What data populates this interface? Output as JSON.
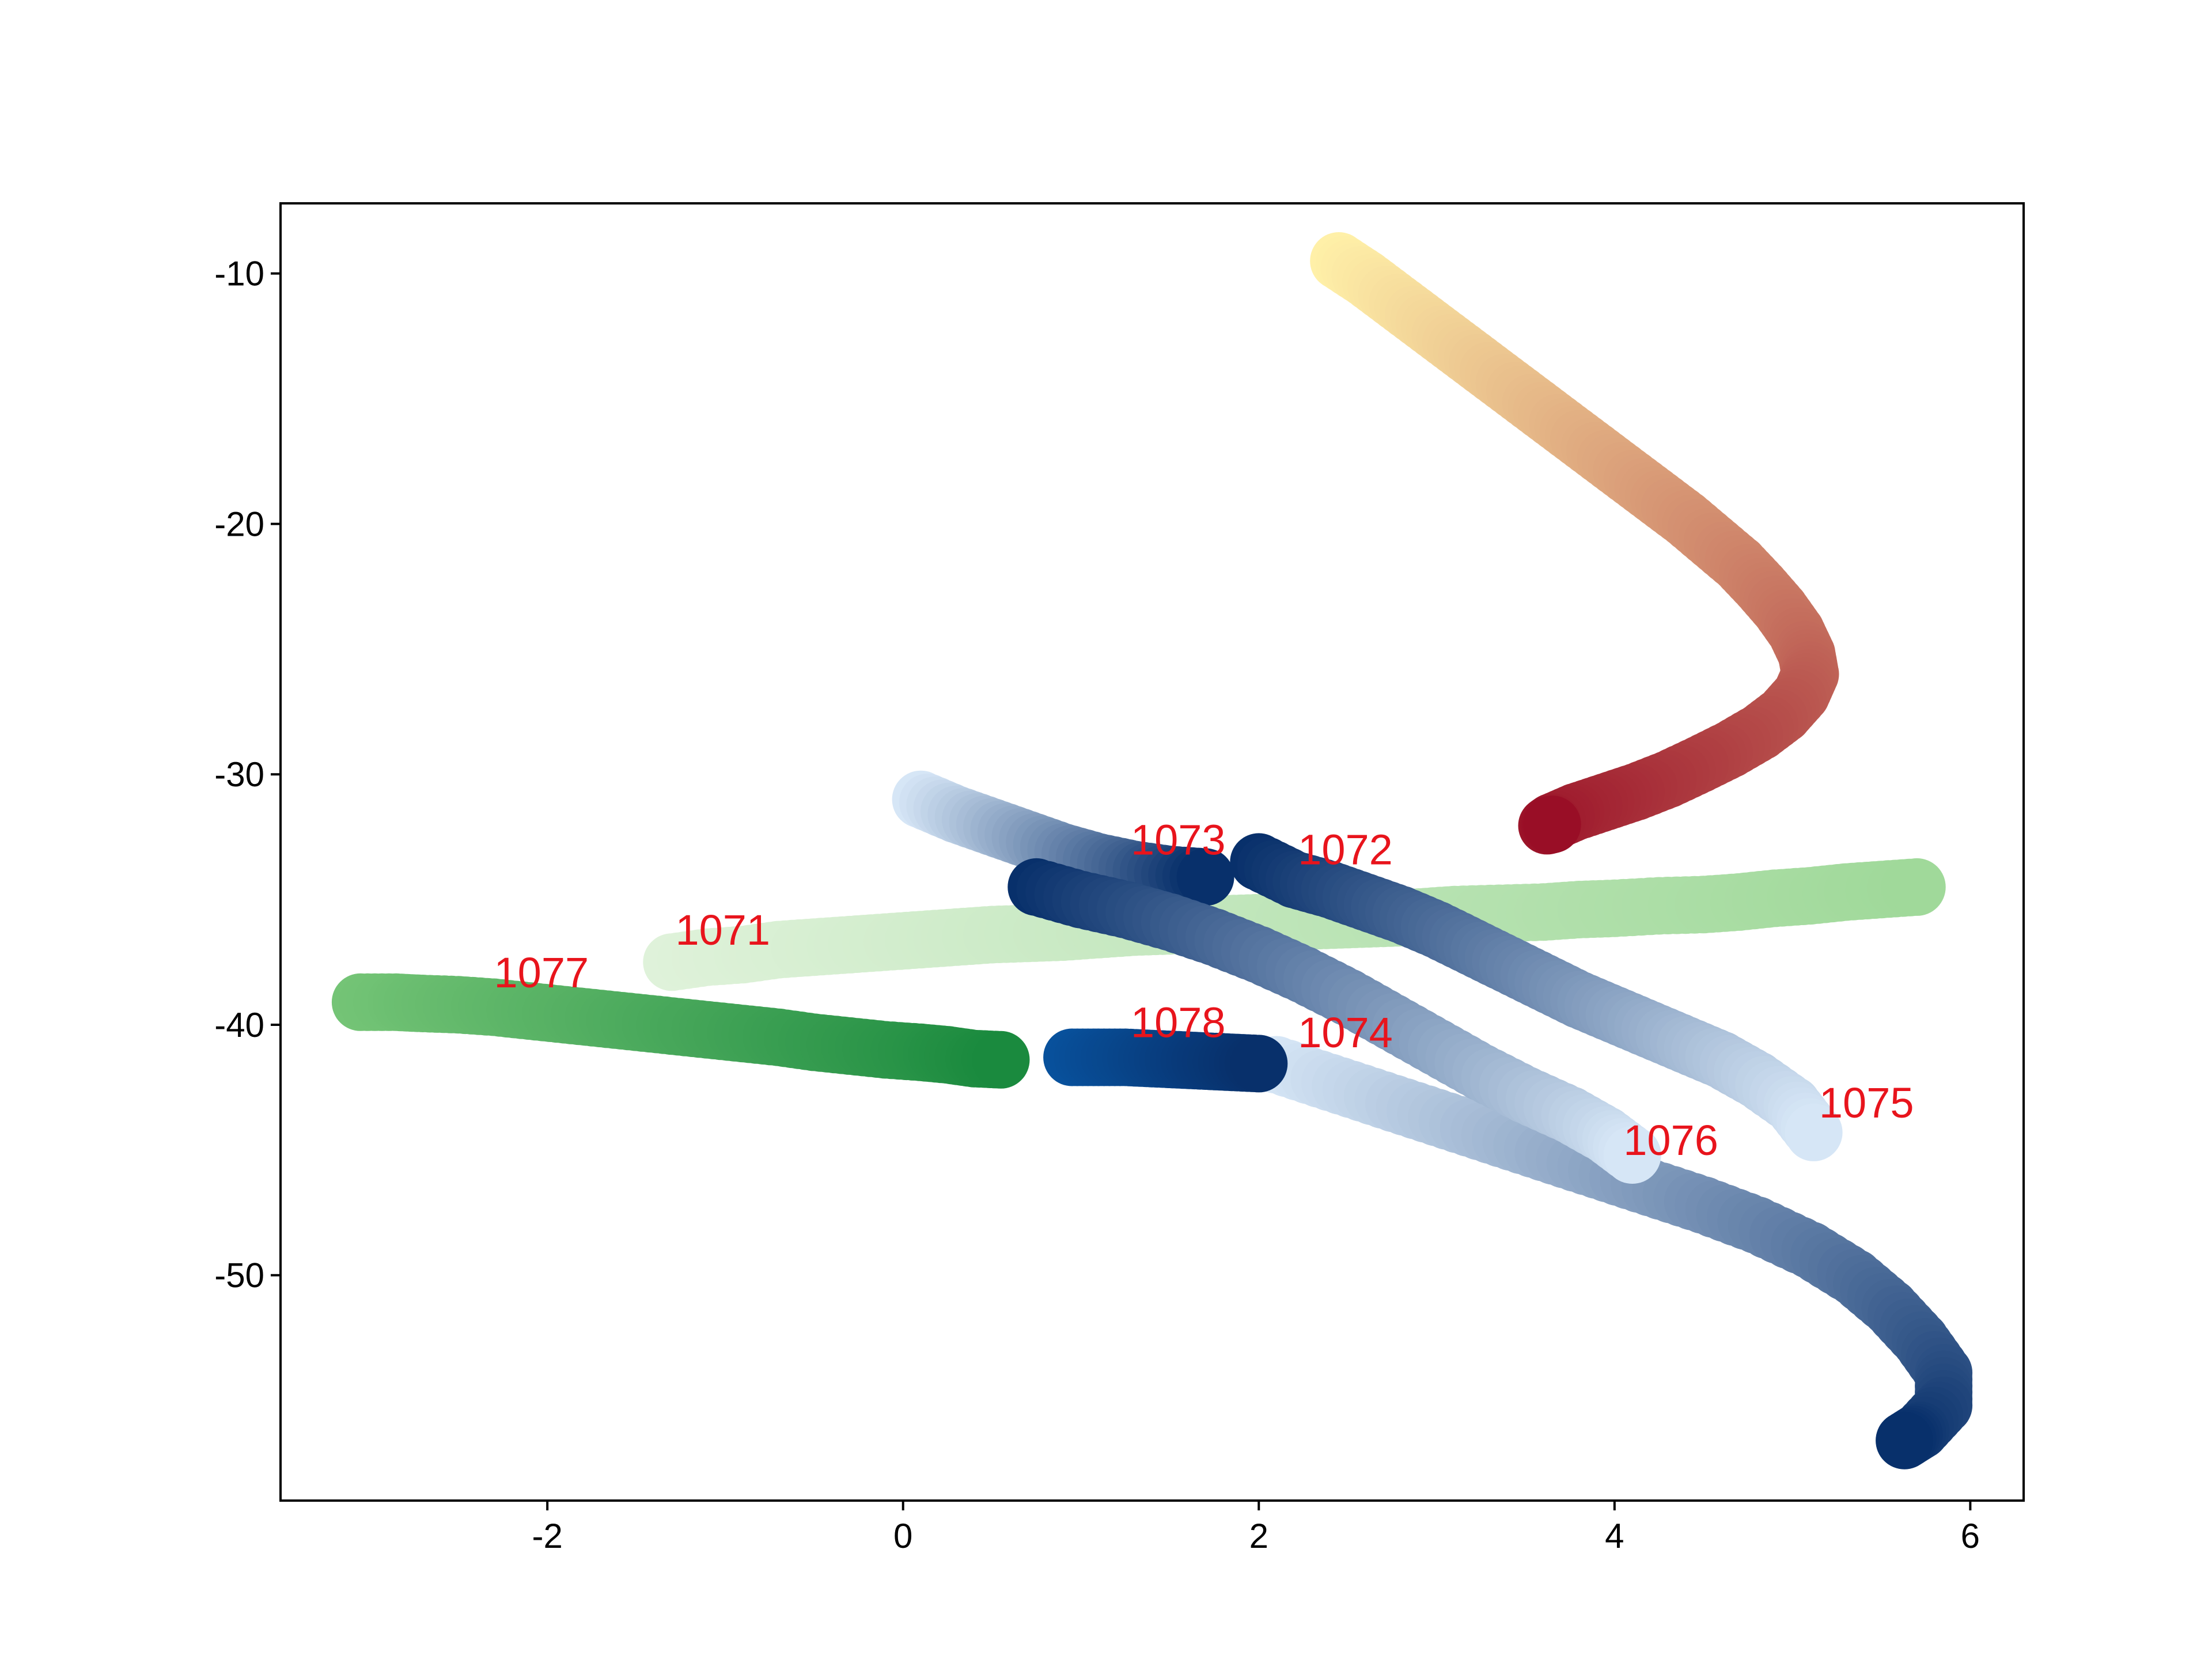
{
  "chart_data": {
    "type": "scatter",
    "title": "",
    "xlabel": "",
    "ylabel": "",
    "xlim": [
      -3.5,
      6.3
    ],
    "ylim": [
      -59.0,
      -7.2
    ],
    "x_ticks": [
      -2,
      0,
      2,
      4,
      6
    ],
    "y_ticks": [
      -10,
      -20,
      -30,
      -40,
      -50
    ],
    "x_tick_labels": [
      "-2",
      "0",
      "2",
      "4",
      "6"
    ],
    "y_tick_labels": [
      "-10",
      "-20",
      "-30",
      "-40",
      "-50"
    ],
    "grid": false,
    "legend": "none",
    "series": [
      {
        "name": "1071",
        "colormap": "Greens",
        "color_start": "#dff2da",
        "color_end": "#a0d99a",
        "label_x": -1.28,
        "label_y": -36.8,
        "points": [
          [
            -1.3,
            -37.5
          ],
          [
            -1.1,
            -37.3
          ],
          [
            -0.9,
            -37.2
          ],
          [
            -0.7,
            -37.0
          ],
          [
            -0.5,
            -36.9
          ],
          [
            -0.3,
            -36.8
          ],
          [
            -0.1,
            -36.7
          ],
          [
            0.1,
            -36.6
          ],
          [
            0.3,
            -36.5
          ],
          [
            0.5,
            -36.4
          ],
          [
            0.7,
            -36.35
          ],
          [
            0.9,
            -36.3
          ],
          [
            1.1,
            -36.2
          ],
          [
            1.3,
            -36.1
          ],
          [
            1.5,
            -36.05
          ],
          [
            1.7,
            -36.0
          ],
          [
            1.9,
            -35.95
          ],
          [
            2.1,
            -35.9
          ],
          [
            2.3,
            -35.85
          ],
          [
            2.5,
            -35.8
          ],
          [
            2.7,
            -35.75
          ],
          [
            2.9,
            -35.7
          ],
          [
            3.1,
            -35.6
          ],
          [
            3.35,
            -35.55
          ],
          [
            3.6,
            -35.5
          ],
          [
            3.8,
            -35.4
          ],
          [
            4.0,
            -35.35
          ],
          [
            4.25,
            -35.25
          ],
          [
            4.5,
            -35.2
          ],
          [
            4.7,
            -35.1
          ],
          [
            4.9,
            -34.95
          ],
          [
            5.1,
            -34.85
          ],
          [
            5.3,
            -34.7
          ],
          [
            5.5,
            -34.6
          ],
          [
            5.7,
            -34.5
          ]
        ]
      },
      {
        "name": "1072",
        "colormap": "YlOrRd",
        "color_start": "#fff0a8",
        "color_end": "#990e26",
        "label_x": 2.22,
        "label_y": -33.6,
        "points": [
          [
            2.45,
            -9.5
          ],
          [
            2.6,
            -10.2
          ],
          [
            2.75,
            -11.0
          ],
          [
            2.9,
            -11.8
          ],
          [
            3.05,
            -12.6
          ],
          [
            3.2,
            -13.4
          ],
          [
            3.35,
            -14.2
          ],
          [
            3.5,
            -15.0
          ],
          [
            3.65,
            -15.8
          ],
          [
            3.8,
            -16.6
          ],
          [
            3.95,
            -17.4
          ],
          [
            4.1,
            -18.2
          ],
          [
            4.25,
            -19.0
          ],
          [
            4.4,
            -19.8
          ],
          [
            4.55,
            -20.7
          ],
          [
            4.7,
            -21.6
          ],
          [
            4.82,
            -22.5
          ],
          [
            4.93,
            -23.4
          ],
          [
            5.02,
            -24.3
          ],
          [
            5.08,
            -25.2
          ],
          [
            5.1,
            -26.0
          ],
          [
            5.05,
            -26.8
          ],
          [
            4.95,
            -27.6
          ],
          [
            4.82,
            -28.3
          ],
          [
            4.65,
            -29.0
          ],
          [
            4.48,
            -29.6
          ],
          [
            4.3,
            -30.2
          ],
          [
            4.12,
            -30.7
          ],
          [
            3.95,
            -31.1
          ],
          [
            3.78,
            -31.5
          ],
          [
            3.65,
            -31.9
          ],
          [
            3.62,
            -32.05
          ],
          [
            3.65,
            -32.0
          ]
        ]
      },
      {
        "name": "1073",
        "colormap": "Blues",
        "color_start": "#d6e6f6",
        "color_end": "#08306b",
        "label_x": 1.28,
        "label_y": -33.2,
        "points": [
          [
            0.1,
            -31.0
          ],
          [
            0.3,
            -31.6
          ],
          [
            0.5,
            -32.1
          ],
          [
            0.7,
            -32.6
          ],
          [
            0.9,
            -33.1
          ],
          [
            1.1,
            -33.5
          ],
          [
            1.3,
            -33.8
          ],
          [
            1.5,
            -34.0
          ],
          [
            1.7,
            -34.1
          ]
        ]
      },
      {
        "name": "1074",
        "colormap": "Blues",
        "color_start": "#d6e6f6",
        "color_end": "#08306b",
        "label_x": 2.22,
        "label_y": -40.9,
        "points": [
          [
            2.1,
            -41.6
          ],
          [
            2.4,
            -42.3
          ],
          [
            2.7,
            -43.0
          ],
          [
            3.0,
            -43.7
          ],
          [
            3.3,
            -44.4
          ],
          [
            3.6,
            -45.1
          ],
          [
            3.9,
            -45.8
          ],
          [
            4.2,
            -46.5
          ],
          [
            4.5,
            -47.2
          ],
          [
            4.8,
            -48.0
          ],
          [
            5.1,
            -49.0
          ],
          [
            5.35,
            -50.1
          ],
          [
            5.55,
            -51.3
          ],
          [
            5.72,
            -52.6
          ],
          [
            5.85,
            -53.9
          ],
          [
            5.85,
            -55.2
          ],
          [
            5.72,
            -56.2
          ],
          [
            5.63,
            -56.6
          ]
        ]
      },
      {
        "name": "1075",
        "colormap": "Blues",
        "color_start": "#08306b",
        "color_end": "#d6e6f6",
        "label_x": 5.15,
        "label_y": -43.7,
        "points": [
          [
            2.0,
            -33.5
          ],
          [
            2.2,
            -34.2
          ],
          [
            2.4,
            -34.6
          ],
          [
            2.6,
            -35.1
          ],
          [
            2.8,
            -35.6
          ],
          [
            3.0,
            -36.2
          ],
          [
            3.2,
            -36.9
          ],
          [
            3.4,
            -37.6
          ],
          [
            3.6,
            -38.3
          ],
          [
            3.8,
            -39.0
          ],
          [
            4.0,
            -39.6
          ],
          [
            4.2,
            -40.2
          ],
          [
            4.4,
            -40.8
          ],
          [
            4.6,
            -41.4
          ],
          [
            4.8,
            -42.2
          ],
          [
            5.0,
            -43.2
          ],
          [
            5.12,
            -44.3
          ]
        ]
      },
      {
        "name": "1076",
        "colormap": "Blues",
        "color_start": "#08306b",
        "color_end": "#d6e6f6",
        "label_x": 4.05,
        "label_y": -45.2,
        "points": [
          [
            0.75,
            -34.5
          ],
          [
            1.0,
            -35.0
          ],
          [
            1.25,
            -35.4
          ],
          [
            1.5,
            -35.9
          ],
          [
            1.75,
            -36.5
          ],
          [
            2.0,
            -37.2
          ],
          [
            2.25,
            -38.0
          ],
          [
            2.5,
            -38.9
          ],
          [
            2.75,
            -39.9
          ],
          [
            3.0,
            -40.9
          ],
          [
            3.25,
            -41.9
          ],
          [
            3.5,
            -42.8
          ],
          [
            3.75,
            -43.6
          ],
          [
            3.95,
            -44.4
          ],
          [
            4.1,
            -45.2
          ]
        ]
      },
      {
        "name": "1077",
        "colormap": "Greens",
        "color_start": "#74c476",
        "color_end": "#1a8a3e",
        "label_x": -2.3,
        "label_y": -38.5,
        "points": [
          [
            -3.05,
            -39.1
          ],
          [
            -2.85,
            -39.1
          ],
          [
            -2.7,
            -39.15
          ],
          [
            -2.5,
            -39.2
          ],
          [
            -2.3,
            -39.3
          ],
          [
            -2.1,
            -39.45
          ],
          [
            -1.9,
            -39.6
          ],
          [
            -1.7,
            -39.75
          ],
          [
            -1.5,
            -39.9
          ],
          [
            -1.3,
            -40.05
          ],
          [
            -1.1,
            -40.2
          ],
          [
            -0.9,
            -40.35
          ],
          [
            -0.7,
            -40.5
          ],
          [
            -0.5,
            -40.7
          ],
          [
            -0.3,
            -40.85
          ],
          [
            -0.1,
            -41.0
          ],
          [
            0.1,
            -41.1
          ],
          [
            0.25,
            -41.2
          ],
          [
            0.4,
            -41.35
          ],
          [
            0.55,
            -41.4
          ]
        ]
      },
      {
        "name": "1078",
        "colormap": "Blues",
        "color_start": "#08519c",
        "color_end": "#08306b",
        "label_x": 1.28,
        "label_y": -40.5,
        "points": [
          [
            0.95,
            -41.3
          ],
          [
            1.1,
            -41.3
          ],
          [
            1.25,
            -41.3
          ],
          [
            1.4,
            -41.35
          ],
          [
            1.55,
            -41.4
          ],
          [
            1.7,
            -41.45
          ],
          [
            1.85,
            -41.5
          ],
          [
            2.0,
            -41.55
          ]
        ]
      }
    ]
  }
}
